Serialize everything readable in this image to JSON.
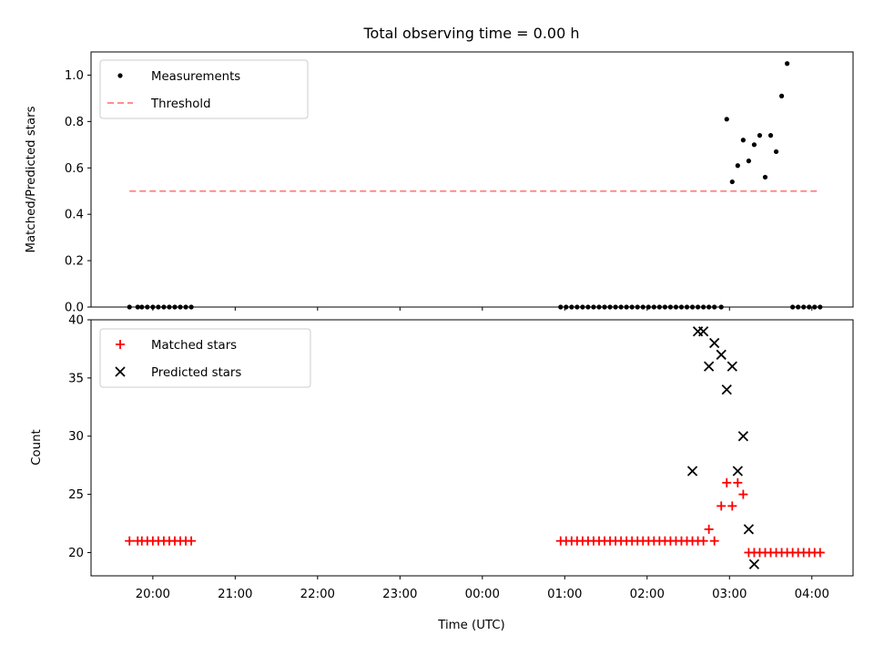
{
  "chart_data": [
    {
      "type": "scatter",
      "title": "Total observing time = 0.00 h",
      "ylabel": "Matched/Predicted stars",
      "ylim": [
        0,
        1.1
      ],
      "yticks": [
        0.0,
        0.2,
        0.4,
        0.6,
        0.8,
        1.0
      ],
      "ytick_labels": [
        "0.0",
        "0.2",
        "0.4",
        "0.6",
        "0.8",
        "1.0"
      ],
      "legend_placement": "upper-left",
      "series": [
        {
          "name": "Measurements",
          "kind": "points",
          "marker": "dot",
          "color": "#000000",
          "x": [
            "19:43",
            "19:49",
            "19:52",
            "19:56",
            "20:00",
            "20:04",
            "20:08",
            "20:12",
            "20:16",
            "20:20",
            "20:24",
            "20:28",
            "00:57",
            "01:01",
            "01:05",
            "01:09",
            "01:13",
            "01:17",
            "01:21",
            "01:25",
            "01:29",
            "01:33",
            "01:37",
            "01:41",
            "01:45",
            "01:49",
            "01:53",
            "01:57",
            "02:01",
            "02:05",
            "02:09",
            "02:13",
            "02:17",
            "02:21",
            "02:25",
            "02:29",
            "02:33",
            "02:37",
            "02:41",
            "02:45",
            "02:49",
            "02:54",
            "02:58",
            "03:02",
            "03:06",
            "03:10",
            "03:14",
            "03:18",
            "03:22",
            "03:26",
            "03:30",
            "03:34",
            "03:38",
            "03:42",
            "03:46",
            "03:50",
            "03:54",
            "03:58",
            "04:02",
            "04:06"
          ],
          "y": [
            0,
            0,
            0,
            0,
            0,
            0,
            0,
            0,
            0,
            0,
            0,
            0,
            0,
            0,
            0,
            0,
            0,
            0,
            0,
            0,
            0,
            0,
            0,
            0,
            0,
            0,
            0,
            0,
            0,
            0,
            0,
            0,
            0,
            0,
            0,
            0,
            0,
            0,
            0,
            0,
            0,
            0,
            0.81,
            0.54,
            0.61,
            0.72,
            0.63,
            0.7,
            0.74,
            0.56,
            0.74,
            0.67,
            0.91,
            1.05,
            0,
            0,
            0,
            0,
            0,
            0
          ]
        },
        {
          "name": "Threshold",
          "kind": "line",
          "style": "dashed",
          "color": "#ff7f7f",
          "x": [
            "19:43",
            "04:06"
          ],
          "y": [
            0.5,
            0.5
          ]
        }
      ]
    },
    {
      "type": "scatter",
      "xlabel": "Time (UTC)",
      "ylabel": "Count",
      "ylim": [
        18,
        40
      ],
      "yticks": [
        20,
        25,
        30,
        35,
        40
      ],
      "xlim": [
        "19:15",
        "04:30"
      ],
      "xticks": [
        "20:00",
        "21:00",
        "22:00",
        "23:00",
        "00:00",
        "01:00",
        "02:00",
        "03:00",
        "04:00"
      ],
      "legend_placement": "upper-left",
      "series": [
        {
          "name": "Matched stars",
          "kind": "points",
          "marker": "plus",
          "color": "#ff0000",
          "x": [
            "19:43",
            "19:49",
            "19:52",
            "19:56",
            "20:00",
            "20:04",
            "20:08",
            "20:12",
            "20:16",
            "20:20",
            "20:24",
            "20:28",
            "00:57",
            "01:01",
            "01:05",
            "01:09",
            "01:13",
            "01:17",
            "01:21",
            "01:25",
            "01:29",
            "01:33",
            "01:37",
            "01:41",
            "01:45",
            "01:49",
            "01:53",
            "01:57",
            "02:01",
            "02:05",
            "02:09",
            "02:13",
            "02:17",
            "02:21",
            "02:25",
            "02:29",
            "02:33",
            "02:37",
            "02:41",
            "02:45",
            "02:49",
            "02:54",
            "02:58",
            "03:02",
            "03:06",
            "03:10",
            "03:14",
            "03:18",
            "03:22",
            "03:26",
            "03:30",
            "03:34",
            "03:38",
            "03:42",
            "03:46",
            "03:50",
            "03:54",
            "03:58",
            "04:02",
            "04:06"
          ],
          "y": [
            21,
            21,
            21,
            21,
            21,
            21,
            21,
            21,
            21,
            21,
            21,
            21,
            21,
            21,
            21,
            21,
            21,
            21,
            21,
            21,
            21,
            21,
            21,
            21,
            21,
            21,
            21,
            21,
            21,
            21,
            21,
            21,
            21,
            21,
            21,
            21,
            21,
            21,
            21,
            22,
            21,
            24,
            26,
            24,
            26,
            25,
            20,
            20,
            20,
            20,
            20,
            20,
            20,
            20,
            20,
            20,
            20,
            20,
            20,
            20
          ]
        },
        {
          "name": "Predicted stars",
          "kind": "points",
          "marker": "x",
          "color": "#000000",
          "x": [
            "02:33",
            "02:37",
            "02:41",
            "02:45",
            "02:49",
            "02:54",
            "02:58",
            "03:02",
            "03:06",
            "03:10",
            "03:14",
            "03:18"
          ],
          "y": [
            27,
            39,
            39,
            36,
            38,
            37,
            34,
            36,
            27,
            30,
            22,
            19
          ]
        }
      ]
    }
  ]
}
